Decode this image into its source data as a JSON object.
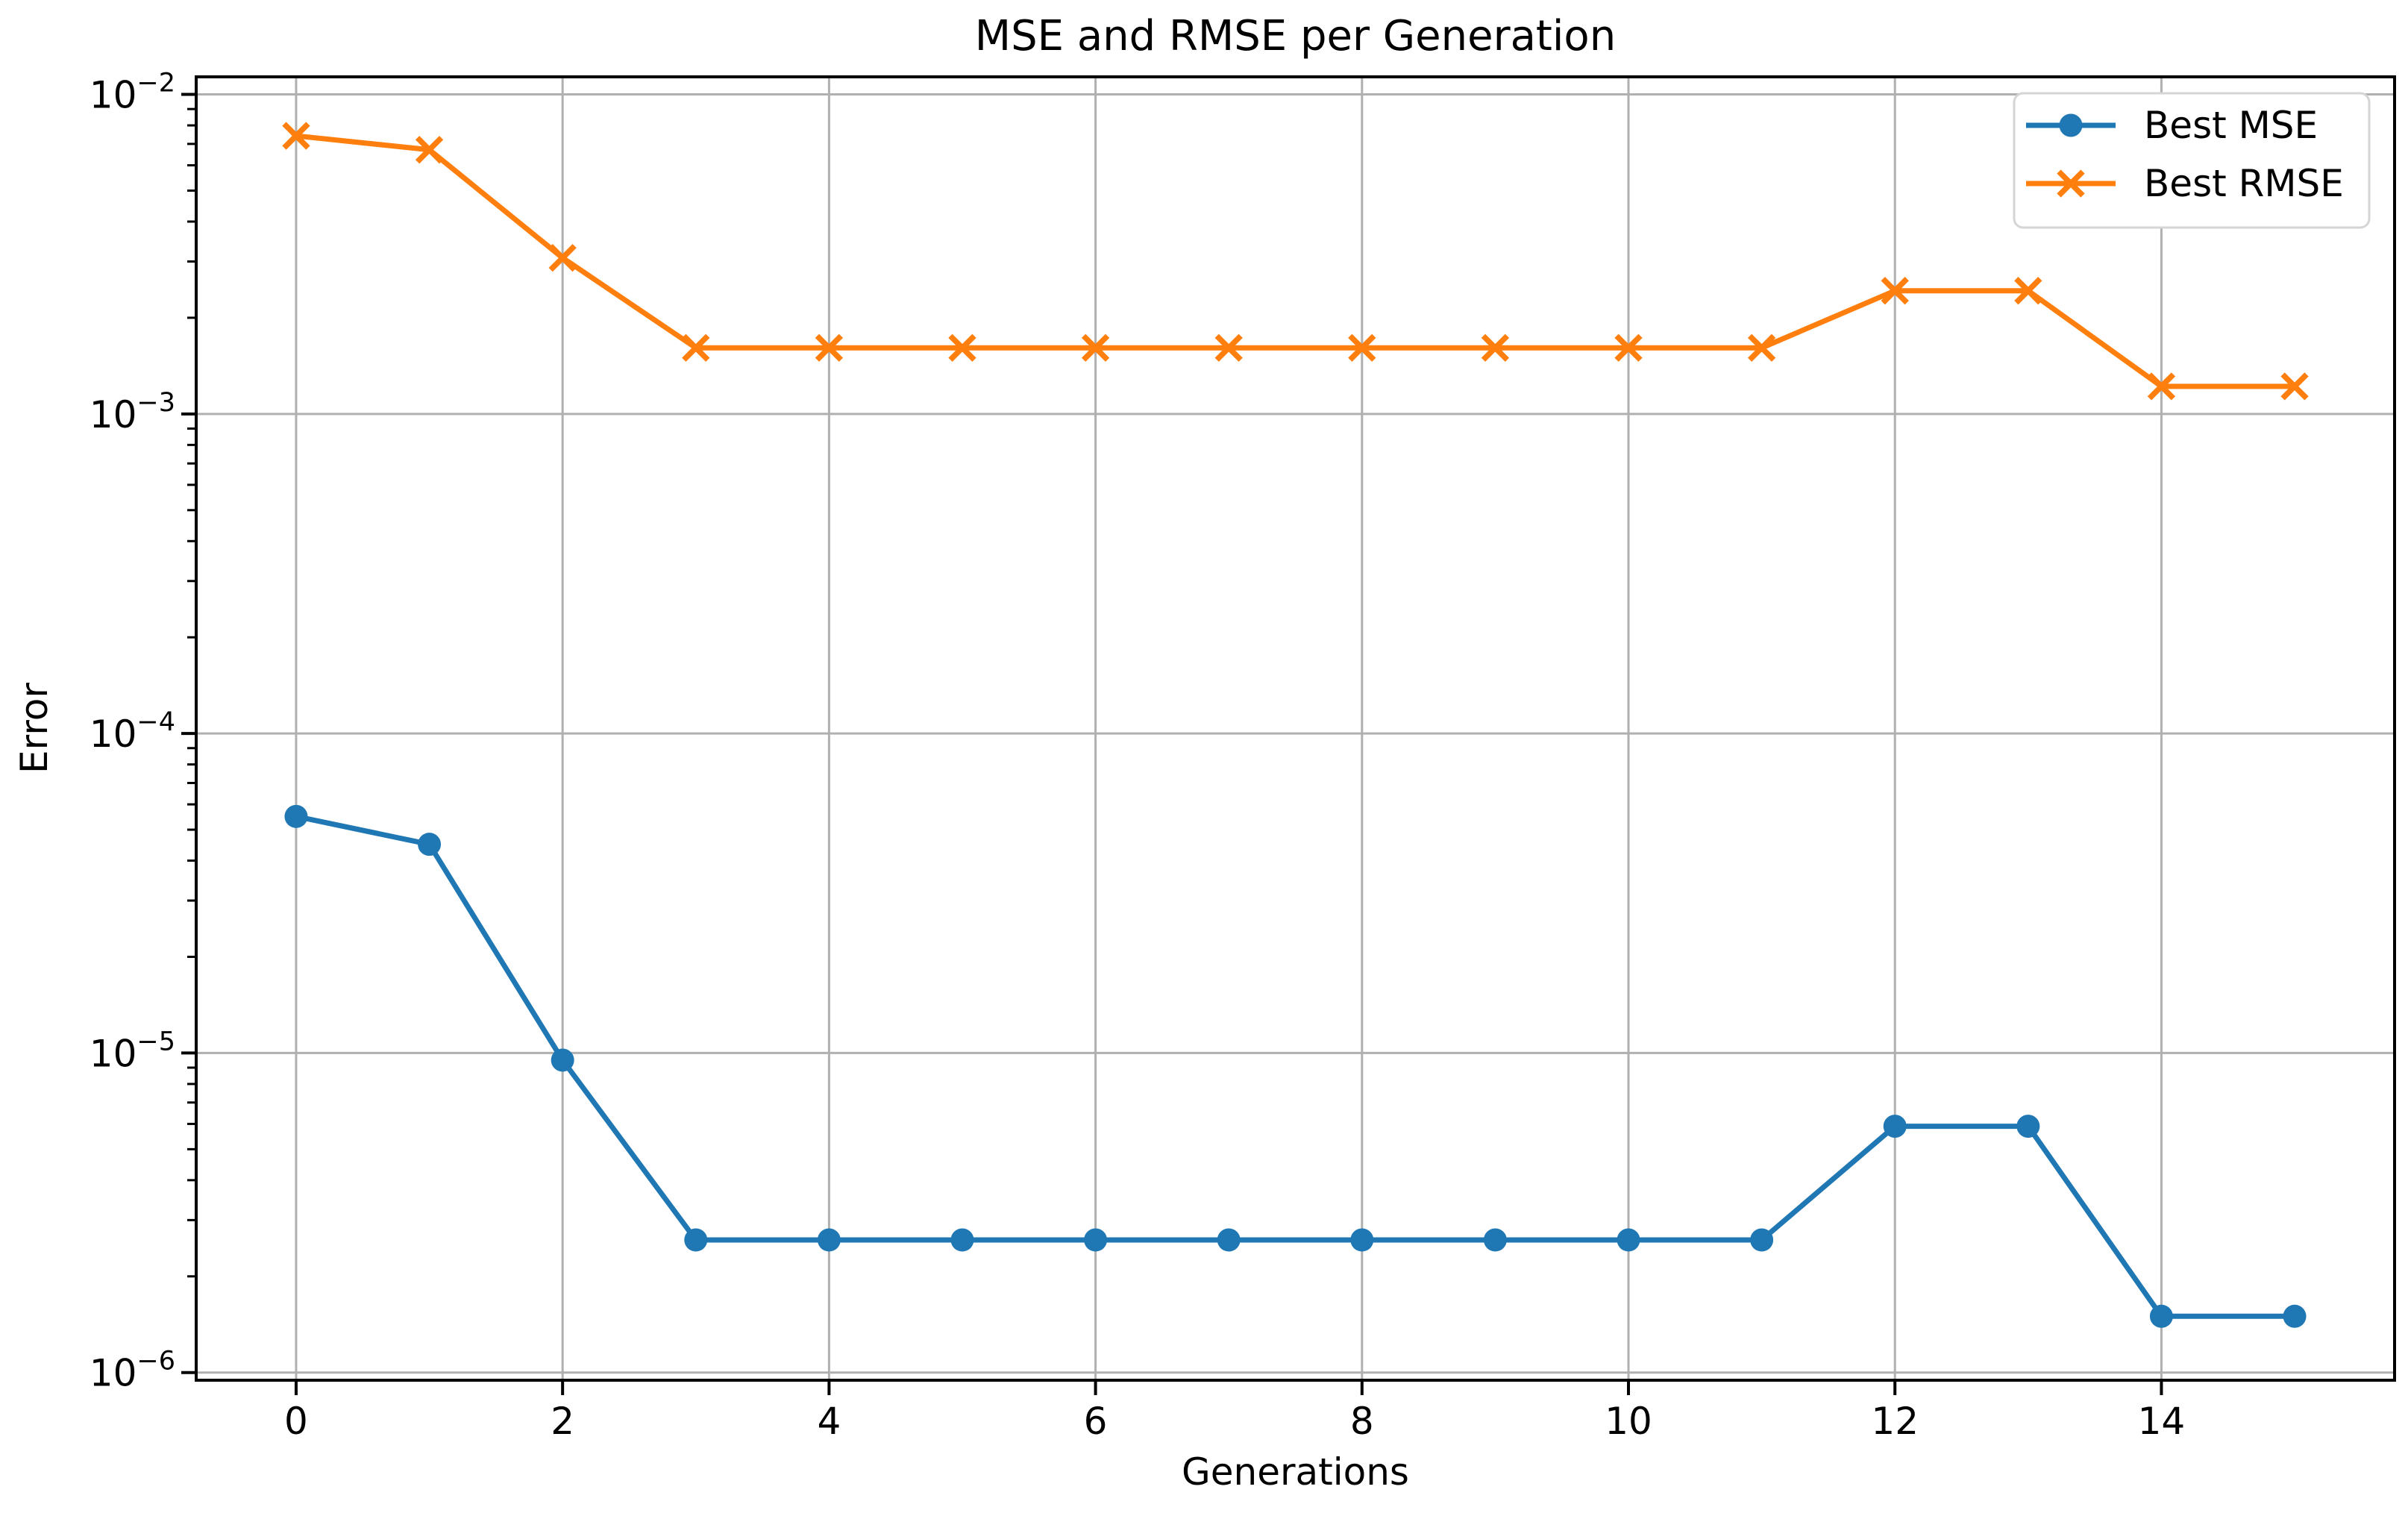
{
  "figure": {
    "title": "MSE and RMSE per Generation",
    "xlabel": "Generations",
    "ylabel": "Error"
  },
  "chart_data": {
    "type": "line",
    "title": "MSE and RMSE per Generation",
    "xlabel": "Generations",
    "ylabel": "Error",
    "y_scale": "log",
    "grid": true,
    "legend_position": "upper right",
    "x": [
      0,
      1,
      2,
      3,
      4,
      5,
      6,
      7,
      8,
      9,
      10,
      11,
      12,
      13,
      14,
      15
    ],
    "series": [
      {
        "name": "Best MSE",
        "color": "#1f77b4",
        "marker": "circle",
        "values": [
          5.5e-05,
          4.5e-05,
          9.5e-06,
          2.6e-06,
          2.6e-06,
          2.6e-06,
          2.6e-06,
          2.6e-06,
          2.6e-06,
          2.6e-06,
          2.6e-06,
          2.6e-06,
          5.9e-06,
          5.9e-06,
          1.5e-06,
          1.5e-06
        ]
      },
      {
        "name": "Best RMSE",
        "color": "#ff7f0e",
        "marker": "x",
        "values": [
          0.00742,
          0.00671,
          0.00308,
          0.00161,
          0.00161,
          0.00161,
          0.00161,
          0.00161,
          0.00161,
          0.00161,
          0.00161,
          0.00161,
          0.00243,
          0.00243,
          0.00122,
          0.00122
        ]
      }
    ],
    "x_ticks": [
      0,
      2,
      4,
      6,
      8,
      10,
      12,
      14
    ],
    "y_tick_exponents": [
      -2,
      -3,
      -4,
      -5,
      -6
    ],
    "xlim": [
      -0.75,
      15.75
    ],
    "ylim_log10": [
      -6.024,
      -1.945
    ],
    "colors": {
      "grid": "#b0b0b0",
      "spine": "#000000",
      "tick_label": "#000000",
      "legend_border": "#d5d5d5",
      "legend_bg": "#ffffff"
    }
  }
}
